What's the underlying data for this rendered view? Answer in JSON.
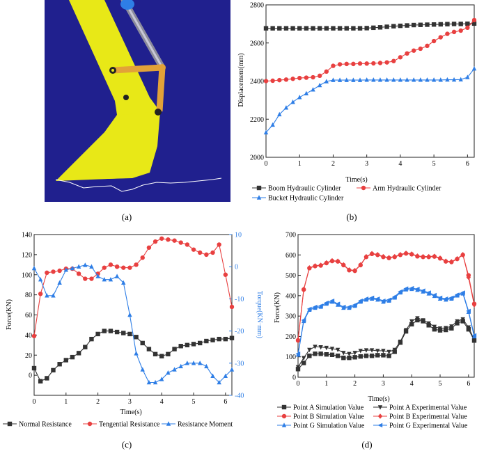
{
  "captions": {
    "a": "(a)",
    "b": "(b)",
    "c": "(c)",
    "d": "(d)"
  },
  "colors": {
    "bg_scene": "#20208e",
    "bucket": "#e8e817",
    "link": "#e2a238",
    "black": "#333333",
    "red": "#e84040",
    "blue": "#2e7ee6",
    "line_black": "#111111"
  },
  "chart_data": [
    {
      "id": "b",
      "type": "line",
      "xlabel": "Time(s)",
      "ylabel": "Displacement(mm)",
      "xlim": [
        0,
        6.2
      ],
      "ylim": [
        2000,
        2800
      ],
      "xticks": [
        "0",
        "1",
        "2",
        "3",
        "4",
        "5",
        "6"
      ],
      "yticks": [
        "2000",
        "2200",
        "2400",
        "2600",
        "2800"
      ],
      "x": [
        0,
        0.2,
        0.4,
        0.6,
        0.8,
        1,
        1.2,
        1.4,
        1.6,
        1.8,
        2,
        2.2,
        2.4,
        2.6,
        2.8,
        3,
        3.2,
        3.4,
        3.6,
        3.8,
        4,
        4.2,
        4.4,
        4.6,
        4.8,
        5,
        5.2,
        5.4,
        5.6,
        5.8,
        6,
        6.2
      ],
      "series": [
        {
          "name": "Boom Hydraulic Cylinder",
          "marker": "square",
          "color": "black",
          "values": [
            2677,
            2677,
            2677,
            2677,
            2677,
            2677,
            2677,
            2677,
            2677,
            2677,
            2677,
            2677,
            2677,
            2677,
            2677,
            2678,
            2680,
            2682,
            2685,
            2688,
            2690,
            2692,
            2694,
            2695,
            2696,
            2697,
            2698,
            2699,
            2700,
            2700,
            2701,
            2702
          ]
        },
        {
          "name": "Arm Hydraulic Cylinder",
          "marker": "circle",
          "color": "red",
          "values": [
            2400,
            2402,
            2405,
            2408,
            2412,
            2416,
            2418,
            2420,
            2428,
            2450,
            2480,
            2488,
            2490,
            2490,
            2492,
            2492,
            2493,
            2495,
            2498,
            2505,
            2525,
            2545,
            2560,
            2570,
            2585,
            2610,
            2630,
            2648,
            2658,
            2665,
            2680,
            2720
          ]
        },
        {
          "name": "Bucket Hydraulic Cylinder",
          "marker": "triangle",
          "color": "blue",
          "values": [
            2130,
            2170,
            2225,
            2260,
            2290,
            2315,
            2335,
            2355,
            2378,
            2398,
            2405,
            2405,
            2405,
            2405,
            2405,
            2406,
            2406,
            2406,
            2406,
            2406,
            2406,
            2406,
            2406,
            2406,
            2406,
            2406,
            2406,
            2407,
            2407,
            2408,
            2420,
            2465
          ]
        }
      ]
    },
    {
      "id": "c",
      "type": "line",
      "xlabel": "Time(s)",
      "ylabel": "Force(KN)",
      "ylabel_right": "Torque(KN·mm)",
      "xlim": [
        0,
        6.2
      ],
      "ylim": [
        -20,
        140
      ],
      "ylim_right": [
        -40,
        10
      ],
      "xticks": [
        "0",
        "1",
        "2",
        "3",
        "4",
        "5",
        "6"
      ],
      "yticks": [
        "0",
        "20",
        "40",
        "60",
        "80",
        "100",
        "120",
        "140"
      ],
      "yticks_right": [
        "10",
        "0",
        "-10",
        "-20",
        "-30",
        "-40"
      ],
      "x": [
        0,
        0.2,
        0.4,
        0.6,
        0.8,
        1,
        1.2,
        1.4,
        1.6,
        1.8,
        2,
        2.2,
        2.4,
        2.6,
        2.8,
        3,
        3.2,
        3.4,
        3.6,
        3.8,
        4,
        4.2,
        4.4,
        4.6,
        4.8,
        5,
        5.2,
        5.4,
        5.6,
        5.8,
        6,
        6.2
      ],
      "series": [
        {
          "name": "Normal Resistance",
          "marker": "square",
          "color": "black",
          "axis": "left",
          "values": [
            7,
            -6,
            -3,
            5,
            11,
            15,
            18,
            22,
            28,
            36,
            41,
            44,
            44,
            43,
            42,
            41,
            38,
            32,
            26,
            21,
            19,
            21,
            26,
            29,
            30,
            31,
            32,
            34,
            35,
            36,
            36,
            37
          ]
        },
        {
          "name": "Tengential Resistance",
          "marker": "circle",
          "color": "red",
          "axis": "left",
          "values": [
            39,
            81,
            102,
            103,
            104,
            106,
            106,
            101,
            96,
            96,
            101,
            107,
            110,
            108,
            107,
            107,
            110,
            117,
            127,
            133,
            136,
            135,
            134,
            132,
            130,
            125,
            122,
            120,
            122,
            130,
            100,
            68
          ]
        },
        {
          "name": "Resistance Moment",
          "marker": "triangle",
          "color": "blue",
          "axis": "right",
          "values": [
            -0.5,
            -4,
            -9,
            -9,
            -5,
            -1,
            -0.5,
            0,
            0.5,
            0,
            -3,
            -4,
            -4,
            -3,
            -5,
            -15,
            -27,
            -32,
            -36,
            -36,
            -35,
            -33,
            -32,
            -31,
            -30,
            -30,
            -30,
            -31,
            -34,
            -36,
            -34,
            -32
          ]
        }
      ]
    },
    {
      "id": "d",
      "type": "line",
      "xlabel": "Time(s)",
      "ylabel": "Force(KN)",
      "xlim": [
        0,
        6.2
      ],
      "ylim": [
        0,
        700
      ],
      "xticks": [
        "0",
        "1",
        "2",
        "3",
        "4",
        "5",
        "6"
      ],
      "yticks": [
        "0",
        "100",
        "200",
        "300",
        "400",
        "500",
        "600",
        "700"
      ],
      "x": [
        0,
        0.2,
        0.4,
        0.6,
        0.8,
        1,
        1.2,
        1.4,
        1.6,
        1.8,
        2,
        2.2,
        2.4,
        2.6,
        2.8,
        3,
        3.2,
        3.4,
        3.6,
        3.8,
        4,
        4.2,
        4.4,
        4.6,
        4.8,
        5,
        5.2,
        5.4,
        5.6,
        5.8,
        6,
        6.2
      ],
      "series": [
        {
          "name": "Point A Simulation Value",
          "marker": "square",
          "color": "black",
          "values": [
            40,
            70,
            105,
            115,
            115,
            112,
            110,
            105,
            95,
            95,
            98,
            102,
            105,
            105,
            108,
            108,
            105,
            125,
            170,
            225,
            260,
            280,
            275,
            255,
            235,
            230,
            232,
            240,
            265,
            275,
            235,
            180
          ]
        },
        {
          "name": "Point A Experimental Value",
          "marker": "triangle-down",
          "color": "black",
          "values": [
            50,
            95,
            135,
            150,
            148,
            145,
            140,
            135,
            120,
            115,
            120,
            130,
            133,
            133,
            130,
            130,
            125,
            135,
            175,
            232,
            275,
            290,
            280,
            265,
            248,
            240,
            242,
            250,
            275,
            285,
            245,
            185
          ]
        },
        {
          "name": "Point B Simulation Value",
          "marker": "circle",
          "color": "red",
          "values": [
            180,
            430,
            535,
            545,
            548,
            560,
            570,
            568,
            550,
            525,
            522,
            550,
            590,
            605,
            600,
            590,
            585,
            590,
            600,
            607,
            603,
            593,
            590,
            590,
            592,
            583,
            568,
            565,
            580,
            600,
            500,
            360
          ]
        },
        {
          "name": "Point B Experimental Value",
          "marker": "diamond",
          "color": "red",
          "values": [
            185,
            432,
            537,
            547,
            550,
            562,
            572,
            570,
            552,
            527,
            524,
            552,
            592,
            607,
            602,
            592,
            587,
            592,
            602,
            609,
            605,
            595,
            592,
            592,
            594,
            585,
            570,
            567,
            582,
            602,
            490,
            355
          ]
        },
        {
          "name": "Point G Simulation Value",
          "marker": "triangle",
          "color": "blue",
          "values": [
            110,
            275,
            330,
            340,
            345,
            360,
            370,
            355,
            340,
            340,
            350,
            370,
            380,
            385,
            380,
            370,
            375,
            390,
            415,
            430,
            432,
            428,
            420,
            410,
            398,
            385,
            380,
            385,
            400,
            410,
            320,
            200
          ]
        },
        {
          "name": "Point G Experimental Value",
          "marker": "triangle-left",
          "color": "blue",
          "values": [
            115,
            280,
            335,
            345,
            350,
            365,
            375,
            360,
            345,
            345,
            355,
            375,
            385,
            390,
            385,
            375,
            380,
            395,
            420,
            435,
            437,
            433,
            425,
            415,
            403,
            390,
            385,
            390,
            405,
            415,
            325,
            205
          ]
        }
      ]
    }
  ]
}
